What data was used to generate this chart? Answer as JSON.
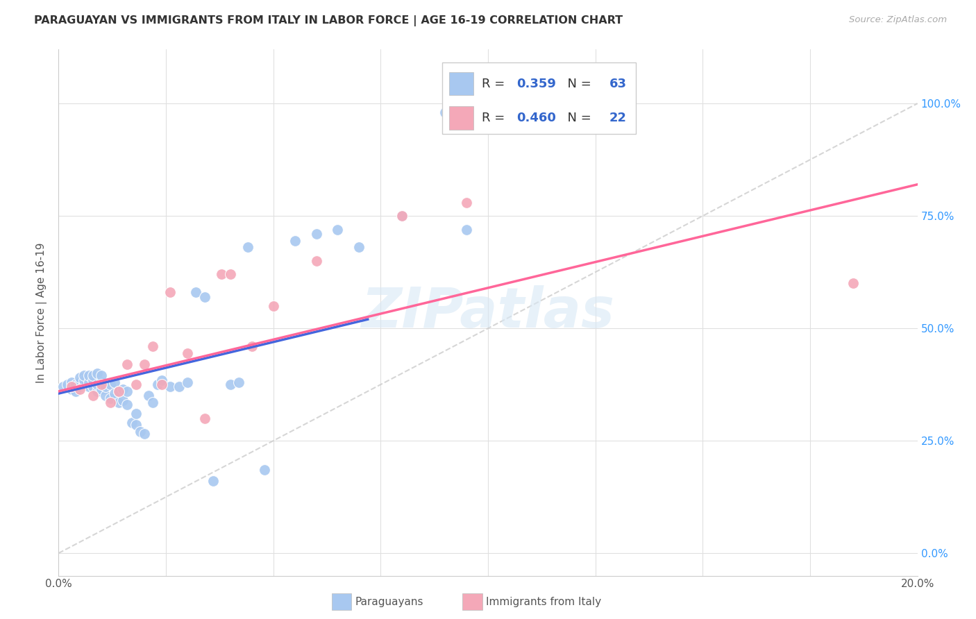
{
  "title": "PARAGUAYAN VS IMMIGRANTS FROM ITALY IN LABOR FORCE | AGE 16-19 CORRELATION CHART",
  "source": "Source: ZipAtlas.com",
  "ylabel": "In Labor Force | Age 16-19",
  "xlim": [
    0.0,
    0.2
  ],
  "ylim": [
    -0.05,
    1.12
  ],
  "ytick_vals": [
    0.0,
    0.25,
    0.5,
    0.75,
    1.0
  ],
  "ytick_labels": [
    "0.0%",
    "25.0%",
    "50.0%",
    "75.0%",
    "100.0%"
  ],
  "blue_color": "#A8C8F0",
  "pink_color": "#F4A8B8",
  "blue_line_color": "#4466DD",
  "pink_line_color": "#FF6699",
  "diagonal_color": "#CCCCCC",
  "R_blue": "0.359",
  "N_blue": "63",
  "R_pink": "0.460",
  "N_pink": "22",
  "blue_x": [
    0.001,
    0.002,
    0.003,
    0.003,
    0.004,
    0.004,
    0.005,
    0.005,
    0.005,
    0.006,
    0.006,
    0.006,
    0.007,
    0.007,
    0.007,
    0.008,
    0.008,
    0.008,
    0.009,
    0.009,
    0.009,
    0.01,
    0.01,
    0.01,
    0.011,
    0.011,
    0.012,
    0.012,
    0.013,
    0.013,
    0.014,
    0.014,
    0.015,
    0.015,
    0.016,
    0.016,
    0.017,
    0.018,
    0.018,
    0.019,
    0.02,
    0.021,
    0.022,
    0.023,
    0.024,
    0.026,
    0.028,
    0.03,
    0.032,
    0.034,
    0.036,
    0.04,
    0.042,
    0.044,
    0.048,
    0.055,
    0.06,
    0.065,
    0.07,
    0.08,
    0.09,
    0.095,
    0.1
  ],
  "blue_y": [
    0.37,
    0.375,
    0.365,
    0.38,
    0.36,
    0.375,
    0.37,
    0.38,
    0.39,
    0.375,
    0.385,
    0.395,
    0.37,
    0.38,
    0.395,
    0.37,
    0.385,
    0.395,
    0.36,
    0.375,
    0.4,
    0.365,
    0.38,
    0.395,
    0.35,
    0.37,
    0.345,
    0.375,
    0.355,
    0.38,
    0.335,
    0.36,
    0.34,
    0.365,
    0.33,
    0.36,
    0.29,
    0.285,
    0.31,
    0.27,
    0.265,
    0.35,
    0.335,
    0.375,
    0.385,
    0.37,
    0.37,
    0.38,
    0.58,
    0.57,
    0.16,
    0.375,
    0.38,
    0.68,
    0.185,
    0.695,
    0.71,
    0.72,
    0.68,
    0.75,
    0.98,
    0.72,
    1.0
  ],
  "pink_x": [
    0.003,
    0.005,
    0.008,
    0.01,
    0.012,
    0.014,
    0.016,
    0.018,
    0.02,
    0.022,
    0.024,
    0.026,
    0.03,
    0.034,
    0.038,
    0.04,
    0.045,
    0.05,
    0.06,
    0.08,
    0.095,
    0.185
  ],
  "pink_y": [
    0.37,
    0.365,
    0.35,
    0.375,
    0.335,
    0.36,
    0.42,
    0.375,
    0.42,
    0.46,
    0.375,
    0.58,
    0.445,
    0.3,
    0.62,
    0.62,
    0.46,
    0.55,
    0.65,
    0.75,
    0.78,
    0.6
  ],
  "blue_trend_x": [
    0.0,
    0.072
  ],
  "blue_trend_y": [
    0.355,
    0.52
  ],
  "pink_trend_x": [
    0.0,
    0.2
  ],
  "pink_trend_y": [
    0.36,
    0.82
  ],
  "watermark_text": "ZIPatlas",
  "background_color": "#FFFFFF",
  "grid_color": "#E0E0E0",
  "tick_color": "#3399FF",
  "label_color": "#555555"
}
